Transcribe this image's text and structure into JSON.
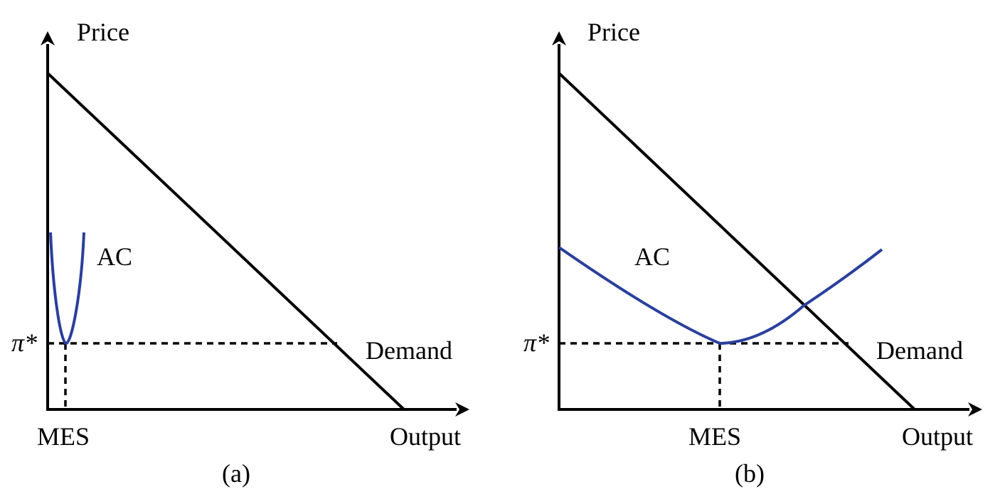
{
  "panels": [
    {
      "caption": "(a)",
      "y_axis_label": "Price",
      "x_axis_label": "Output",
      "cost_curve_label": "AC",
      "demand_label": "Demand",
      "price_label": "π*",
      "scale_label": "MES"
    },
    {
      "caption": "(b)",
      "y_axis_label": "Price",
      "x_axis_label": "Output",
      "cost_curve_label": "AC",
      "demand_label": "Demand",
      "price_label": "π*",
      "scale_label": "MES"
    }
  ],
  "colors": {
    "axes": "#000000",
    "demand": "#000000",
    "average_cost": "#2a3f9c",
    "guides": "#000000"
  }
}
